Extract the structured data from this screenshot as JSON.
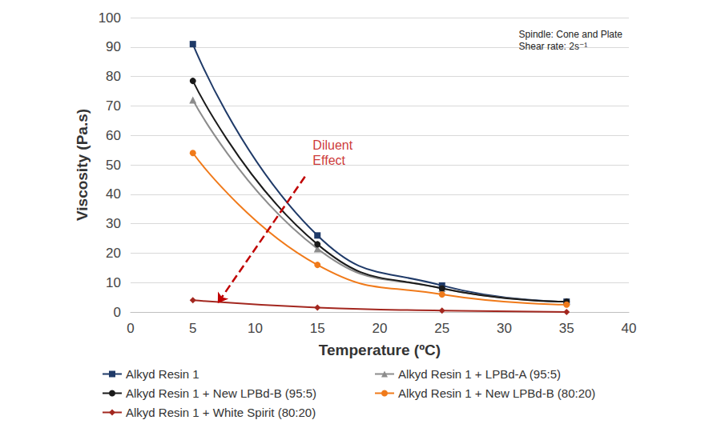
{
  "chart_data": {
    "type": "line",
    "x_label": "Temperature (ºC)",
    "y_label": "Viscosity (Pa.s)",
    "note": [
      "Spindle: Cone and Plate",
      "Shear rate: 2s⁻¹"
    ],
    "xlim": [
      0,
      40
    ],
    "xticks": [
      0,
      5,
      10,
      15,
      20,
      25,
      30,
      35,
      40
    ],
    "ylim": [
      0,
      100
    ],
    "yticks": [
      0,
      10,
      20,
      30,
      40,
      50,
      60,
      70,
      80,
      90,
      100
    ],
    "grid": true,
    "legend": "bottom",
    "x": [
      5,
      15,
      25,
      35
    ],
    "series": [
      {
        "name": "Alkyd Resin 1",
        "color": "#1f3a68",
        "marker": "square",
        "values": [
          91,
          26,
          9,
          3.5
        ]
      },
      {
        "name": "Alkyd Resin 1 + LPBd-A (95:5)",
        "color": "#8c8c8c",
        "marker": "triangle",
        "values": [
          72,
          21.5,
          8,
          3.5
        ]
      },
      {
        "name": "Alkyd Resin 1 + New LPBd-B (95:5)",
        "color": "#1a1a1a",
        "marker": "circle",
        "values": [
          78.5,
          23,
          8,
          3.5
        ]
      },
      {
        "name": "Alkyd Resin 1 + New LPBd-B (80:20)",
        "color": "#f07a1a",
        "marker": "circle",
        "values": [
          54,
          16,
          6,
          2.5
        ]
      },
      {
        "name": "Alkyd Resin 1 + White Spirit (80:20)",
        "color": "#a3271f",
        "marker": "diamond",
        "values": [
          4,
          1.5,
          0.5,
          0
        ]
      }
    ],
    "annotations": [
      {
        "text": "Diluent\nEffect",
        "x": 14.3,
        "y": 54,
        "color": "#c00000",
        "arrow_from": [
          14,
          46
        ],
        "arrow_to": [
          7,
          3
        ]
      }
    ]
  }
}
